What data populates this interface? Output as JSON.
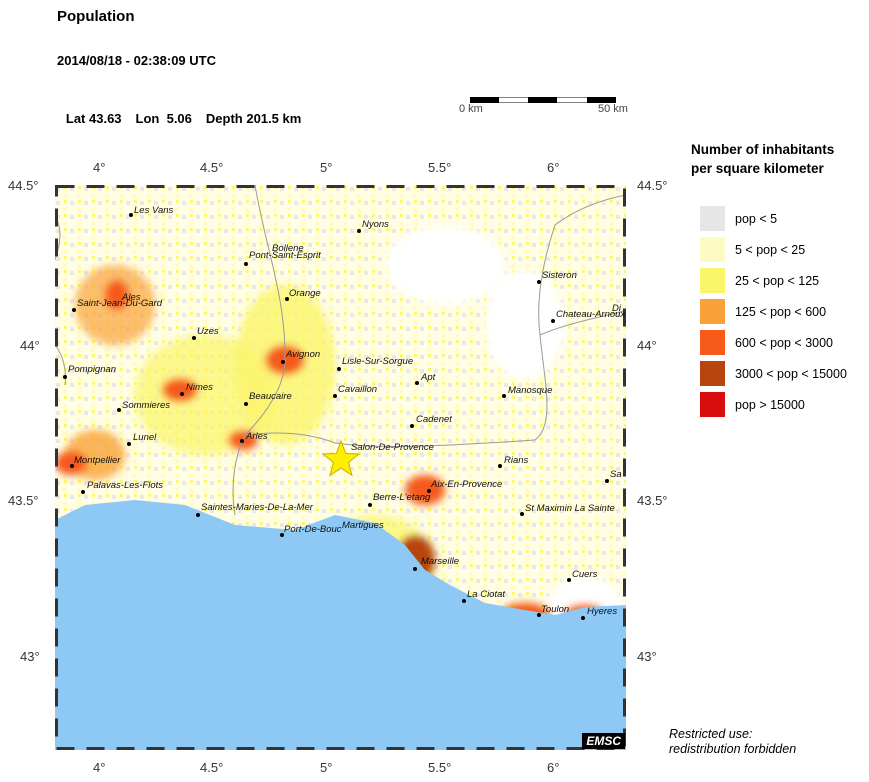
{
  "header": {
    "title": "Population",
    "datetime": "2014/08/18 - 02:38:09 UTC",
    "lat_label": "Lat 43.63",
    "lon_label": "Lon  5.06",
    "depth_label": "Depth 201.5 km"
  },
  "scale_bar": {
    "start_label": "0 km",
    "end_label": "50 km"
  },
  "axes": {
    "x_ticks": [
      "4°",
      "4.5°",
      "5°",
      "5.5°",
      "6°"
    ],
    "y_ticks": [
      "44.5°",
      "44°",
      "43.5°",
      "43°"
    ]
  },
  "legend": {
    "title_line1": "Number of inhabitants",
    "title_line2": "per square kilometer",
    "items": [
      {
        "label": "pop < 5",
        "color": "#e6e6e6"
      },
      {
        "label": "5 < pop < 25",
        "color": "#fdfbc4"
      },
      {
        "label": "25 < pop < 125",
        "color": "#fbf56a"
      },
      {
        "label": "125 < pop < 600",
        "color": "#f9a23a"
      },
      {
        "label": "600 < pop < 3000",
        "color": "#f55a1a"
      },
      {
        "label": "3000 < pop < 15000",
        "color": "#b8450e"
      },
      {
        "label": "pop > 15000",
        "color": "#d80c0c"
      }
    ]
  },
  "cities": [
    "Les Vans",
    "Nyons",
    "Bollene",
    "Pont-Saint-Esprit",
    "Orange",
    "Sisteron",
    "Ales",
    "Saint-Jean-Du-Gard",
    "Chateau-Arnoux",
    "Di",
    "Uzes",
    "Avignon",
    "Lisle-Sur-Sorgue",
    "Pompignan",
    "Nimes",
    "Cavaillon",
    "Apt",
    "Beaucaire",
    "Manosque",
    "Sommieres",
    "Cadenet",
    "Lunel",
    "Arles",
    "Salon-De-Provence",
    "Montpellier",
    "Rians",
    "Sa",
    "Palavas-Les-Flots",
    "Aix-En-Provence",
    "Berre-L'etang",
    "Saintes-Maries-De-La-Mer",
    "St Maximin La Sainte",
    "Port-De-Bouc",
    "Martigues",
    "Marseille",
    "Cuers",
    "La Ciotat",
    "Toulon",
    "Hyeres"
  ],
  "badge": "EMSC",
  "note": {
    "line1": "Restricted use:",
    "line2": "redistribution forbidden"
  },
  "colors": {
    "sea": "#8ec8f5",
    "epicenter": "#ffee00"
  }
}
